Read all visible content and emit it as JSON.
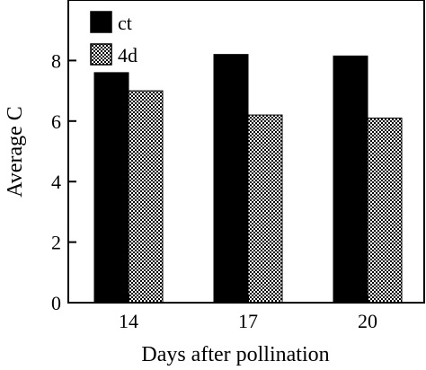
{
  "chart_data": {
    "type": "bar",
    "categories": [
      "14",
      "17",
      "20"
    ],
    "series": [
      {
        "name": "ct",
        "values": [
          7.6,
          8.2,
          8.15
        ],
        "color": "#000000",
        "pattern": "solid"
      },
      {
        "name": "4d",
        "values": [
          7.0,
          6.2,
          6.1
        ],
        "color": "#7a7a7a",
        "pattern": "stipple"
      }
    ],
    "xlabel": "Days after pollination",
    "ylabel": "Average C",
    "ylim": [
      0,
      10
    ],
    "yticks": [
      0,
      2,
      4,
      6,
      8
    ],
    "grid": false,
    "legend_position": "top-left"
  }
}
